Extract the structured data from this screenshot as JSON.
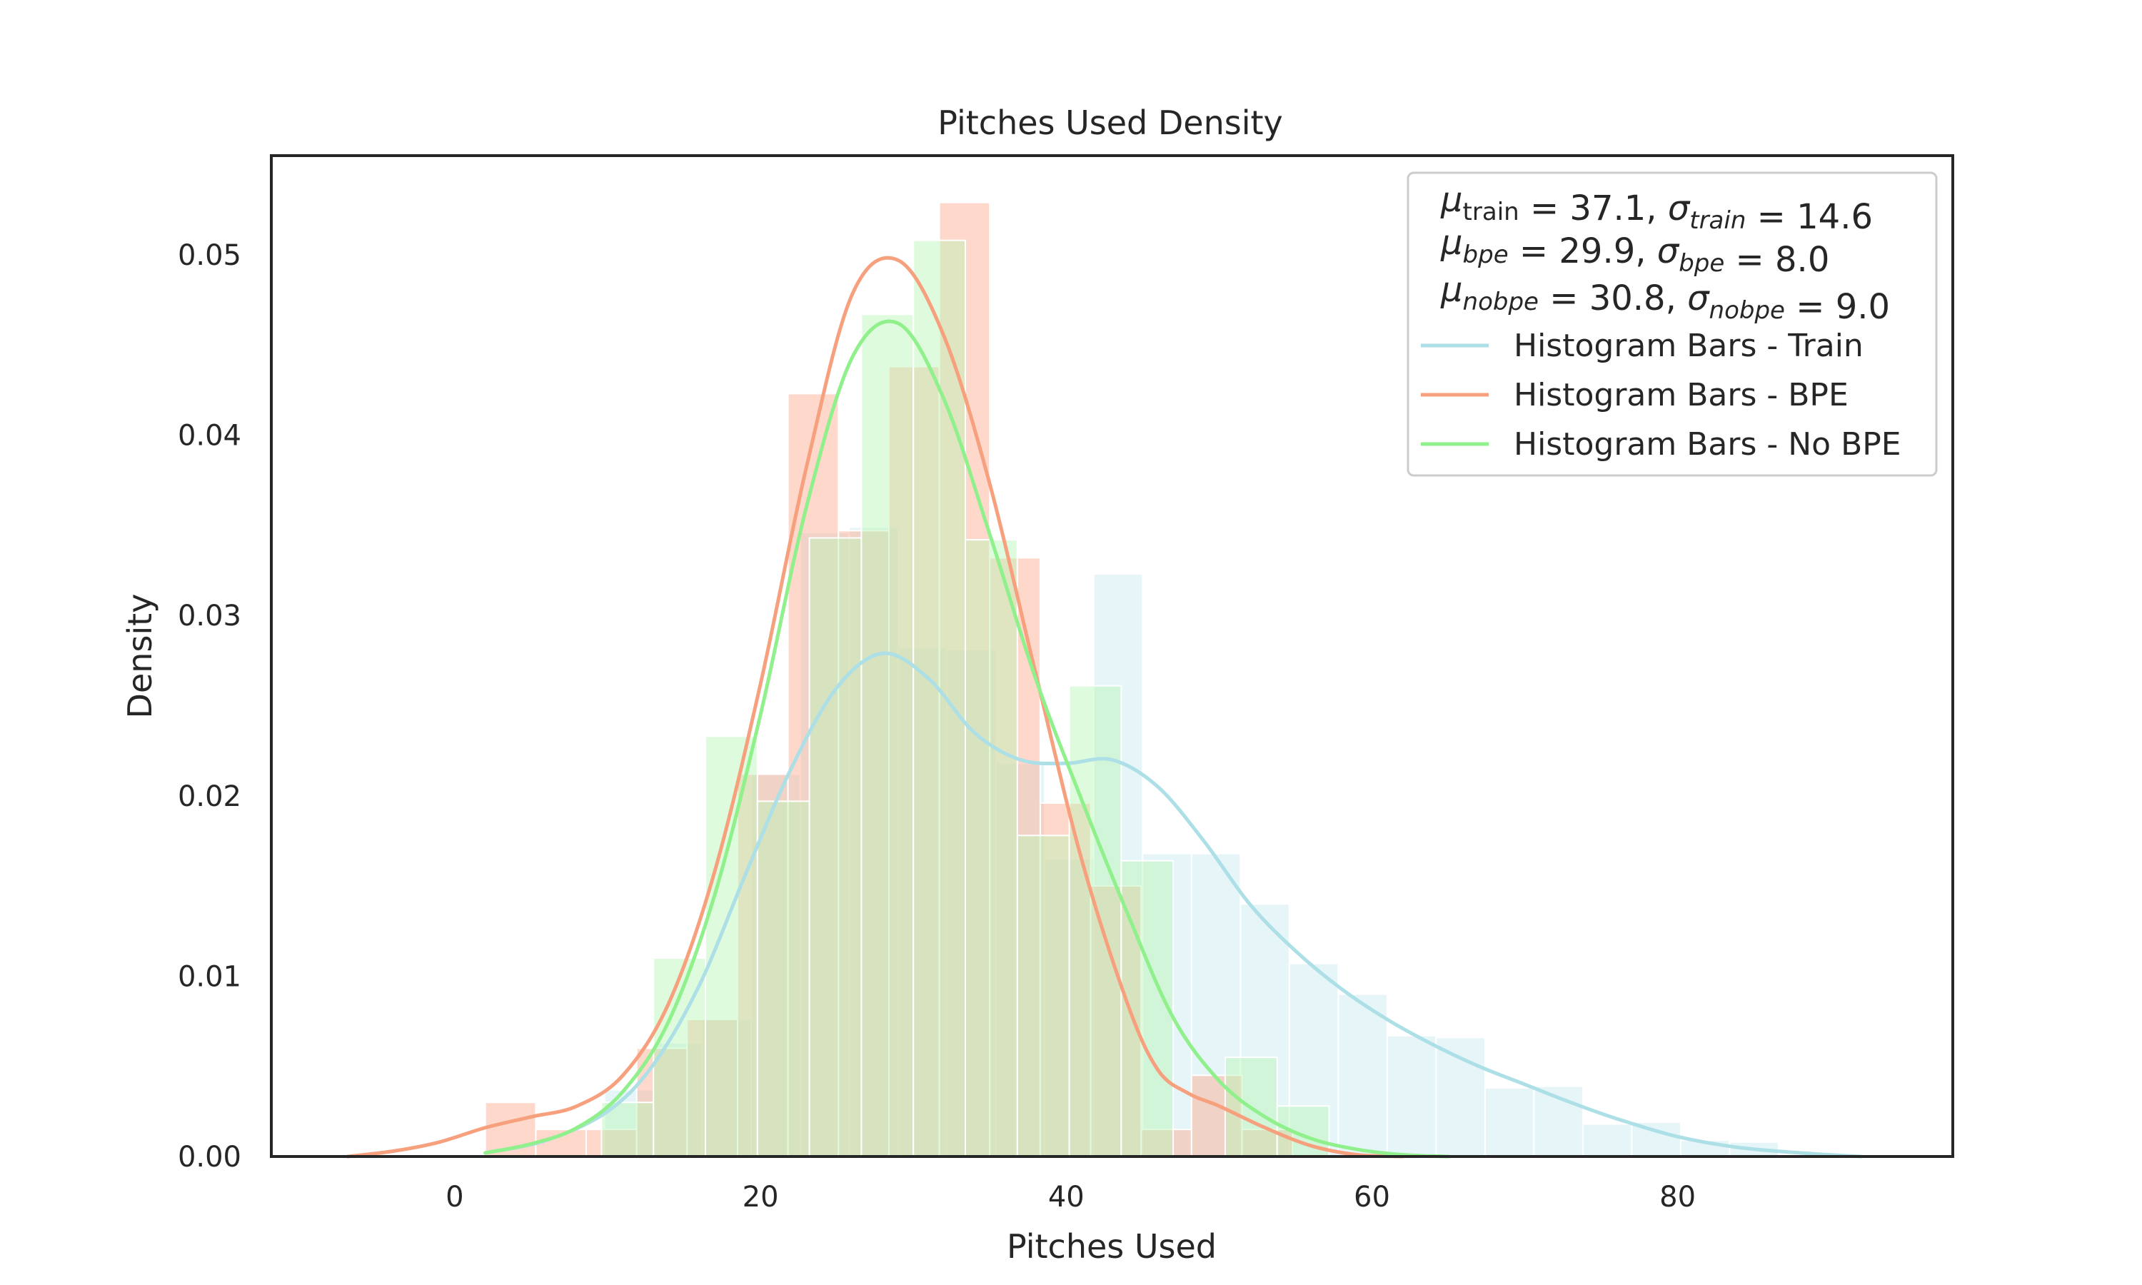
{
  "chart_data": {
    "type": "histogram",
    "title": "Pitches Used Density",
    "xlabel": "Pitches Used",
    "ylabel": "Density",
    "xlim": [
      -12,
      98
    ],
    "ylim": [
      0,
      0.0555
    ],
    "x_ticks": [
      0,
      20,
      40,
      60,
      80
    ],
    "x_tick_labels": [
      "0",
      "20",
      "40",
      "60",
      "80"
    ],
    "y_ticks": [
      0.0,
      0.01,
      0.02,
      0.03,
      0.04,
      0.05
    ],
    "y_tick_labels": [
      "0.00",
      "0.01",
      "0.02",
      "0.03",
      "0.04",
      "0.05"
    ],
    "grid": false,
    "legend_position": "upper right",
    "stats": [
      {
        "mu_sub": "train",
        "mu_italic": false,
        "mu": "37.1",
        "sigma_sub": "train",
        "sigma": "14.6"
      },
      {
        "mu_sub": "bpe",
        "mu_italic": true,
        "mu": "29.9",
        "sigma_sub": "bpe",
        "sigma": "8.0"
      },
      {
        "mu_sub": "nobpe",
        "mu_italic": true,
        "mu": "30.8",
        "sigma_sub": "nobpe",
        "sigma": "9.0"
      }
    ],
    "series": [
      {
        "name": "Histogram Bars - Train",
        "line_color": "#ADDFE6",
        "bar_color": "#ADDFE6",
        "bar_alpha": 0.3,
        "bins": [
          {
            "x0": 9.8,
            "x1": 13.0,
            "y": 0.0037
          },
          {
            "x0": 13.0,
            "x1": 16.2,
            "y": 0.0063
          },
          {
            "x0": 16.2,
            "x1": 19.4,
            "y": 0.0076
          },
          {
            "x0": 19.4,
            "x1": 22.6,
            "y": 0.0212
          },
          {
            "x0": 22.6,
            "x1": 25.8,
            "y": 0.0346
          },
          {
            "x0": 25.8,
            "x1": 29.0,
            "y": 0.0349
          },
          {
            "x0": 29.0,
            "x1": 32.2,
            "y": 0.0282
          },
          {
            "x0": 32.2,
            "x1": 35.4,
            "y": 0.0281
          },
          {
            "x0": 35.4,
            "x1": 38.6,
            "y": 0.0218
          },
          {
            "x0": 38.6,
            "x1": 41.8,
            "y": 0.0165
          },
          {
            "x0": 41.8,
            "x1": 45.0,
            "y": 0.0323
          },
          {
            "x0": 45.0,
            "x1": 48.2,
            "y": 0.0168
          },
          {
            "x0": 48.2,
            "x1": 51.4,
            "y": 0.0168
          },
          {
            "x0": 51.4,
            "x1": 54.6,
            "y": 0.014
          },
          {
            "x0": 54.6,
            "x1": 57.8,
            "y": 0.0107
          },
          {
            "x0": 57.8,
            "x1": 61.0,
            "y": 0.009
          },
          {
            "x0": 61.0,
            "x1": 64.2,
            "y": 0.0067
          },
          {
            "x0": 64.2,
            "x1": 67.4,
            "y": 0.0066
          },
          {
            "x0": 67.4,
            "x1": 70.6,
            "y": 0.0038
          },
          {
            "x0": 70.6,
            "x1": 73.8,
            "y": 0.0039
          },
          {
            "x0": 73.8,
            "x1": 77.0,
            "y": 0.0018
          },
          {
            "x0": 77.0,
            "x1": 80.2,
            "y": 0.0019
          },
          {
            "x0": 80.2,
            "x1": 83.4,
            "y": 0.0009
          },
          {
            "x0": 83.4,
            "x1": 86.6,
            "y": 0.0008
          }
        ],
        "kde": {
          "x": [
            2,
            6,
            10,
            13,
            16,
            19,
            22,
            25,
            28,
            31,
            34,
            37,
            40,
            43,
            46,
            49,
            52,
            55,
            58,
            61,
            64,
            67,
            70,
            73,
            76,
            80,
            84,
            88,
            92
          ],
          "y": [
            0.0002,
            0.0009,
            0.0025,
            0.0051,
            0.0095,
            0.0156,
            0.0215,
            0.026,
            0.0279,
            0.0265,
            0.0235,
            0.022,
            0.0218,
            0.022,
            0.0205,
            0.0175,
            0.014,
            0.0114,
            0.0093,
            0.0076,
            0.0062,
            0.005,
            0.004,
            0.003,
            0.0021,
            0.0011,
            0.0005,
            0.0002,
            0.0
          ]
        }
      },
      {
        "name": "Histogram Bars - BPE",
        "line_color": "#F7A07E",
        "bar_color": "#FCA88C",
        "bar_alpha": 0.45,
        "bins": [
          {
            "x0": 2.0,
            "x1": 5.3,
            "y": 0.003
          },
          {
            "x0": 5.3,
            "x1": 8.6,
            "y": 0.0015
          },
          {
            "x0": 8.6,
            "x1": 11.9,
            "y": 0.0015
          },
          {
            "x0": 11.9,
            "x1": 15.2,
            "y": 0.006
          },
          {
            "x0": 15.2,
            "x1": 18.5,
            "y": 0.0076
          },
          {
            "x0": 18.5,
            "x1": 21.8,
            "y": 0.0212
          },
          {
            "x0": 21.8,
            "x1": 25.1,
            "y": 0.0423
          },
          {
            "x0": 25.1,
            "x1": 28.4,
            "y": 0.0347
          },
          {
            "x0": 28.4,
            "x1": 31.7,
            "y": 0.0438
          },
          {
            "x0": 31.7,
            "x1": 35.0,
            "y": 0.0529
          },
          {
            "x0": 35.0,
            "x1": 38.3,
            "y": 0.0332
          },
          {
            "x0": 38.3,
            "x1": 41.6,
            "y": 0.0196
          },
          {
            "x0": 41.6,
            "x1": 44.9,
            "y": 0.015
          },
          {
            "x0": 44.9,
            "x1": 48.2,
            "y": 0.0015
          },
          {
            "x0": 48.2,
            "x1": 51.5,
            "y": 0.0045
          },
          {
            "x0": 51.5,
            "x1": 54.8,
            "y": 0.0015
          }
        ],
        "kde": {
          "x": [
            -7,
            -4,
            -1,
            2,
            5,
            8,
            11,
            14,
            17,
            20,
            23,
            26,
            29,
            32,
            35,
            38,
            41,
            44,
            46,
            48,
            50,
            53,
            56,
            59,
            62
          ],
          "y": [
            0.0,
            0.0003,
            0.0008,
            0.0016,
            0.0022,
            0.0028,
            0.0045,
            0.0085,
            0.0158,
            0.0262,
            0.0382,
            0.0478,
            0.0497,
            0.0455,
            0.0373,
            0.0268,
            0.0165,
            0.0085,
            0.0048,
            0.0035,
            0.0028,
            0.0016,
            0.0006,
            0.0001,
            0.0
          ]
        }
      },
      {
        "name": "Histogram Bars - No BPE",
        "line_color": "#90F08C",
        "bar_color": "#B7F7B4",
        "bar_alpha": 0.45,
        "bins": [
          {
            "x0": 9.6,
            "x1": 13.0,
            "y": 0.003
          },
          {
            "x0": 13.0,
            "x1": 16.4,
            "y": 0.011
          },
          {
            "x0": 16.4,
            "x1": 19.8,
            "y": 0.0233
          },
          {
            "x0": 19.8,
            "x1": 23.2,
            "y": 0.0197
          },
          {
            "x0": 23.2,
            "x1": 26.6,
            "y": 0.0343
          },
          {
            "x0": 26.6,
            "x1": 30.0,
            "y": 0.0467
          },
          {
            "x0": 30.0,
            "x1": 33.4,
            "y": 0.0508
          },
          {
            "x0": 33.4,
            "x1": 36.8,
            "y": 0.0342
          },
          {
            "x0": 36.8,
            "x1": 40.2,
            "y": 0.0178
          },
          {
            "x0": 40.2,
            "x1": 43.6,
            "y": 0.0261
          },
          {
            "x0": 43.6,
            "x1": 47.0,
            "y": 0.0164
          },
          {
            "x0": 47.0,
            "x1": 50.4,
            "y": 0.0
          },
          {
            "x0": 50.4,
            "x1": 53.8,
            "y": 0.0055
          },
          {
            "x0": 53.8,
            "x1": 57.2,
            "y": 0.0028
          }
        ],
        "kde": {
          "x": [
            2,
            5,
            8,
            11,
            14,
            17,
            20,
            23,
            26,
            29,
            32,
            35,
            38,
            41,
            44,
            47,
            50,
            53,
            56,
            59,
            62,
            65
          ],
          "y": [
            0.0002,
            0.0007,
            0.0016,
            0.0036,
            0.0075,
            0.0145,
            0.0245,
            0.036,
            0.0443,
            0.0462,
            0.042,
            0.0345,
            0.0265,
            0.0198,
            0.0135,
            0.0077,
            0.0042,
            0.0022,
            0.001,
            0.0004,
            0.0001,
            0.0
          ]
        }
      }
    ]
  }
}
